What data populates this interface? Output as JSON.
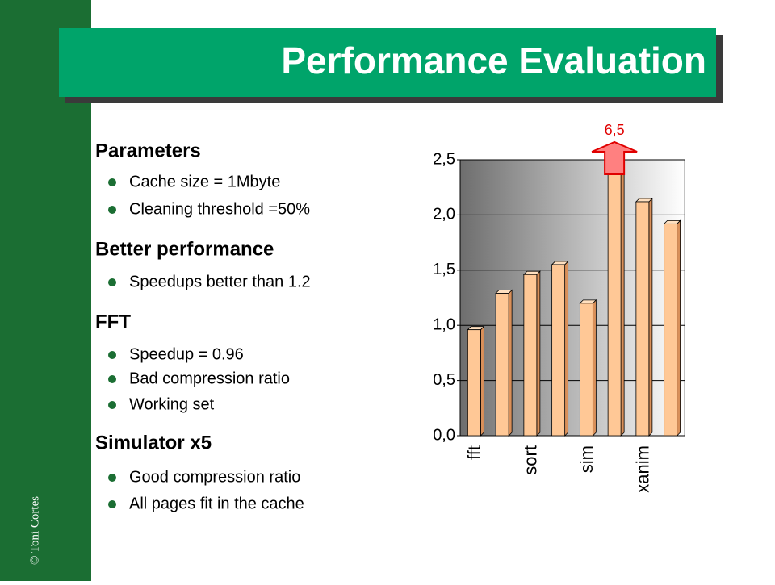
{
  "slide": {
    "title": "Performance Evaluation",
    "credit": "© Toni Cortes",
    "bullets": [
      {
        "text": "Parameters",
        "items": [
          "Cache size = 1Mbyte",
          "Cleaning threshold =50%"
        ]
      },
      {
        "text": "Better performance",
        "items": [
          "Speedups better than 1.2"
        ]
      },
      {
        "text": "FFT",
        "items": [
          "Speedup = 0.96",
          "Bad compression ratio",
          "Working set"
        ]
      },
      {
        "text": "Simulator x5",
        "items": [
          "Good compression ratio",
          "All pages fit in the cache"
        ]
      }
    ]
  },
  "chart_data": {
    "type": "bar",
    "categories": [
      "fft",
      null,
      "sort",
      null,
      "sim",
      null,
      "xanim",
      null
    ],
    "values": [
      0.96,
      1.29,
      1.46,
      1.55,
      1.2,
      6.5,
      2.12,
      1.92
    ],
    "value_labels": [
      null,
      null,
      null,
      null,
      null,
      "6,5",
      null,
      null
    ],
    "color": "#ffc896",
    "ylim": [
      0,
      2.5
    ],
    "yticks": [
      {
        "value": 0,
        "label": "0,0"
      },
      {
        "value": 0.5,
        "label": "0,5"
      },
      {
        "value": 1,
        "label": "1,0"
      },
      {
        "value": 1.5,
        "label": "1,5"
      },
      {
        "value": 2,
        "label": "2,0"
      },
      {
        "value": 2.5,
        "label": "2,5"
      }
    ],
    "grid": true
  }
}
